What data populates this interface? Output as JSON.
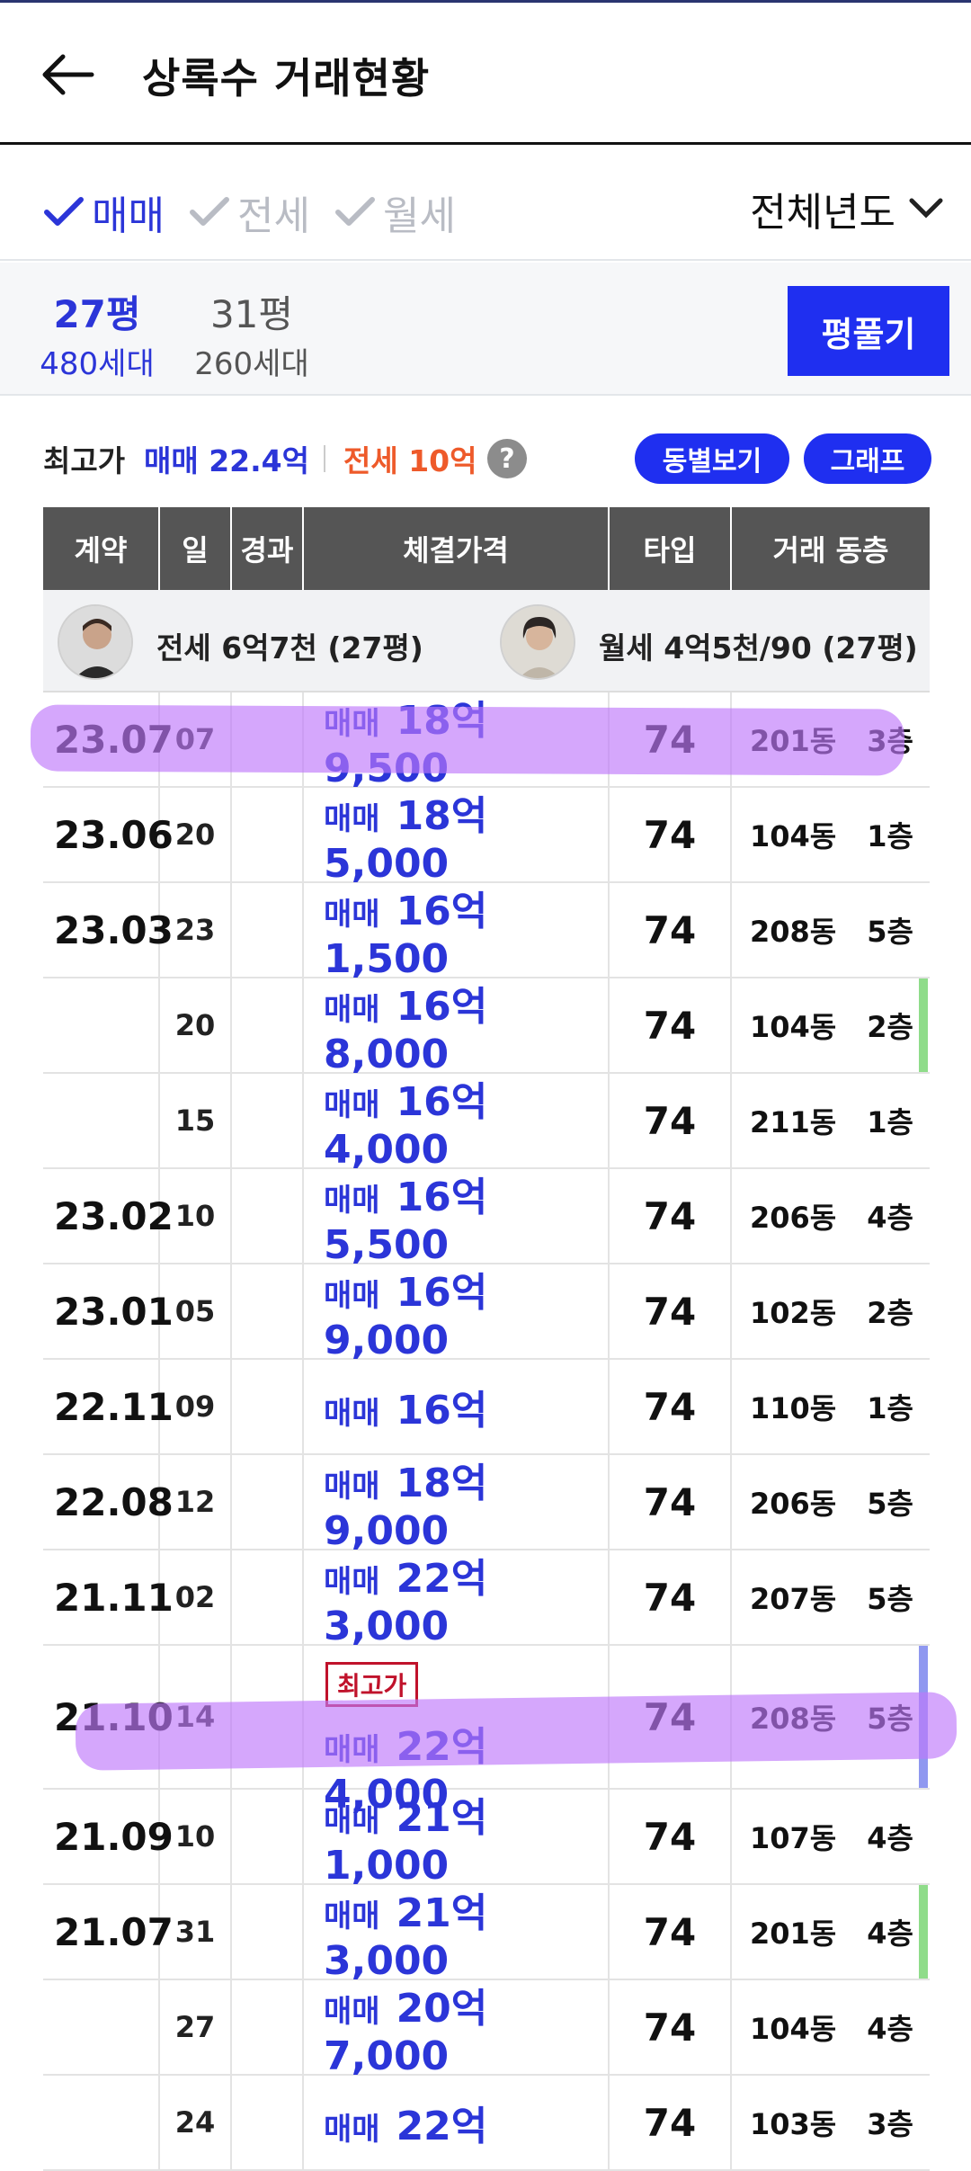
{
  "header": {
    "title": "상록수 거래현황",
    "back_icon": "arrow-left-icon"
  },
  "filters": {
    "deal_types": [
      {
        "label": "매매",
        "checked": true
      },
      {
        "label": "전세",
        "checked": false
      },
      {
        "label": "월세",
        "checked": false
      }
    ],
    "year_select": "전체년도"
  },
  "sizes": [
    {
      "pyeong": "27평",
      "households": "480세대",
      "selected": true
    },
    {
      "pyeong": "31평",
      "households": "260세대",
      "selected": false
    }
  ],
  "size_button": "평풀기",
  "highest": {
    "label": "최고가",
    "sale": "매매 22.4억",
    "jeonse": "전세 10억",
    "help_icon": "question-icon",
    "buttons": [
      "동별보기",
      "그래프"
    ]
  },
  "table": {
    "headers": [
      "계약",
      "일",
      "경과",
      "체결가격",
      "타입",
      "거래 동층"
    ],
    "profiles": [
      {
        "text": "전세 6억7천 (27평)"
      },
      {
        "text": "월세 4억5천/90 (27평)"
      }
    ],
    "rows": [
      {
        "month": "23.07",
        "day": "07",
        "kind": "매매",
        "price": "18억 9,500",
        "type": "74",
        "dong": "201동",
        "floor": "3층"
      },
      {
        "month": "23.06",
        "day": "20",
        "kind": "매매",
        "price": "18억 5,000",
        "type": "74",
        "dong": "104동",
        "floor": "1층"
      },
      {
        "month": "23.03",
        "day": "23",
        "kind": "매매",
        "price": "16억 1,500",
        "type": "74",
        "dong": "208동",
        "floor": "5층"
      },
      {
        "month": "",
        "day": "20",
        "kind": "매매",
        "price": "16억 8,000",
        "type": "74",
        "dong": "104동",
        "floor": "2층"
      },
      {
        "month": "",
        "day": "15",
        "kind": "매매",
        "price": "16억 4,000",
        "type": "74",
        "dong": "211동",
        "floor": "1층"
      },
      {
        "month": "23.02",
        "day": "10",
        "kind": "매매",
        "price": "16억 5,500",
        "type": "74",
        "dong": "206동",
        "floor": "4층"
      },
      {
        "month": "23.01",
        "day": "05",
        "kind": "매매",
        "price": "16억 9,000",
        "type": "74",
        "dong": "102동",
        "floor": "2층"
      },
      {
        "month": "22.11",
        "day": "09",
        "kind": "매매",
        "price": "16억",
        "type": "74",
        "dong": "110동",
        "floor": "1층"
      },
      {
        "month": "22.08",
        "day": "12",
        "kind": "매매",
        "price": "18억 9,000",
        "type": "74",
        "dong": "206동",
        "floor": "5층"
      },
      {
        "month": "21.11",
        "day": "02",
        "kind": "매매",
        "price": "22억 3,000",
        "type": "74",
        "dong": "207동",
        "floor": "5층"
      },
      {
        "month": "21.10",
        "day": "14",
        "kind": "매매",
        "price": "22억 4,000",
        "type": "74",
        "dong": "208동",
        "floor": "5층",
        "badge": "최고가"
      },
      {
        "month": "21.09",
        "day": "10",
        "kind": "매매",
        "price": "21억 1,000",
        "type": "74",
        "dong": "107동",
        "floor": "4층"
      },
      {
        "month": "21.07",
        "day": "31",
        "kind": "매매",
        "price": "21억 3,000",
        "type": "74",
        "dong": "201동",
        "floor": "4층"
      },
      {
        "month": "",
        "day": "27",
        "kind": "매매",
        "price": "20억 7,000",
        "type": "74",
        "dong": "104동",
        "floor": "4층"
      },
      {
        "month": "",
        "day": "24",
        "kind": "매매",
        "price": "22억",
        "type": "74",
        "dong": "103동",
        "floor": "3층"
      }
    ]
  },
  "colors": {
    "accent": "#2b35d8",
    "jeonse": "#ee5a2a",
    "button": "#1f2ff0",
    "highlight": "#be78fa",
    "side_green": "#8fdc8a",
    "side_blue": "#8f98f0"
  }
}
